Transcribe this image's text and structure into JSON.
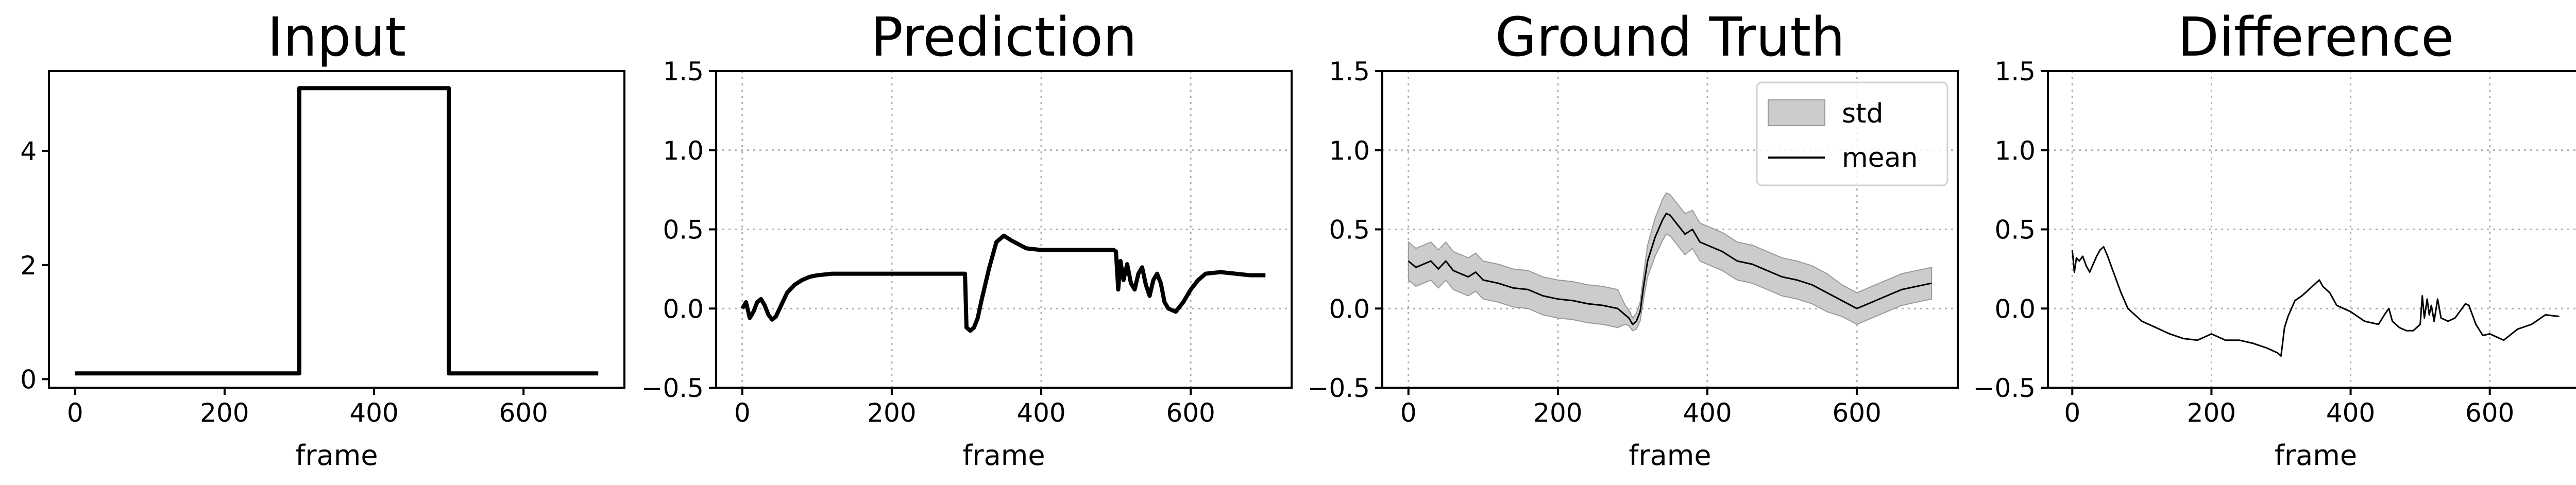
{
  "figure": {
    "colors": {
      "line": "#000000",
      "std_fill": "#cccccc",
      "grid": "#b0b0b0"
    }
  },
  "chart_data": [
    {
      "type": "line",
      "title": "Input",
      "xlabel": "frame",
      "ylabel": "",
      "xlim": [
        -35,
        735
      ],
      "ylim": [
        -0.15,
        5.4
      ],
      "xticks": [
        0,
        200,
        400,
        600
      ],
      "yticks": [
        0,
        2,
        4
      ],
      "grid": false,
      "legend": null,
      "series": [
        {
          "x": [
            0,
            300,
            300,
            500,
            500,
            700
          ],
          "y": [
            0.1,
            0.1,
            5.1,
            5.1,
            0.1,
            0.1
          ]
        }
      ]
    },
    {
      "type": "line",
      "title": "Prediction",
      "xlabel": "frame",
      "ylabel": "",
      "xlim": [
        -35,
        735
      ],
      "ylim": [
        -0.5,
        1.5
      ],
      "xticks": [
        0,
        200,
        400,
        600
      ],
      "yticks": [
        -0.5,
        0.0,
        0.5,
        1.0,
        1.5
      ],
      "grid": true,
      "legend": null,
      "series": [
        {
          "x": [
            0,
            5,
            10,
            15,
            20,
            25,
            30,
            35,
            40,
            45,
            50,
            55,
            60,
            70,
            80,
            90,
            100,
            120,
            150,
            200,
            250,
            298,
            300,
            305,
            310,
            315,
            320,
            330,
            340,
            350,
            360,
            380,
            400,
            450,
            497,
            500,
            503,
            506,
            510,
            515,
            520,
            525,
            530,
            535,
            540,
            545,
            550,
            555,
            560,
            565,
            570,
            580,
            590,
            600,
            610,
            620,
            640,
            660,
            680,
            700
          ],
          "y": [
            0.0,
            0.04,
            -0.06,
            -0.02,
            0.04,
            0.06,
            0.02,
            -0.04,
            -0.07,
            -0.05,
            0.0,
            0.05,
            0.1,
            0.15,
            0.18,
            0.2,
            0.21,
            0.22,
            0.22,
            0.22,
            0.22,
            0.22,
            -0.12,
            -0.14,
            -0.12,
            -0.06,
            0.05,
            0.25,
            0.42,
            0.46,
            0.43,
            0.38,
            0.37,
            0.37,
            0.37,
            0.36,
            0.12,
            0.3,
            0.18,
            0.28,
            0.16,
            0.12,
            0.22,
            0.26,
            0.15,
            0.08,
            0.18,
            0.22,
            0.16,
            0.04,
            0.0,
            -0.02,
            0.04,
            0.12,
            0.18,
            0.22,
            0.23,
            0.22,
            0.21,
            0.21
          ]
        }
      ]
    },
    {
      "type": "line",
      "title": "Ground Truth",
      "xlabel": "frame",
      "ylabel": "",
      "xlim": [
        -35,
        735
      ],
      "ylim": [
        -0.5,
        1.5
      ],
      "xticks": [
        0,
        200,
        400,
        600
      ],
      "yticks": [
        -0.5,
        0.0,
        0.5,
        1.0,
        1.5
      ],
      "grid": true,
      "legend": {
        "position": "top-right",
        "entries": [
          "std",
          "mean"
        ]
      },
      "series": [
        {
          "x": [
            0,
            10,
            20,
            30,
            40,
            50,
            60,
            70,
            80,
            90,
            100,
            120,
            140,
            160,
            180,
            200,
            220,
            240,
            260,
            280,
            290,
            295,
            300,
            305,
            310,
            315,
            320,
            330,
            340,
            345,
            350,
            360,
            370,
            380,
            390,
            400,
            420,
            440,
            460,
            480,
            500,
            520,
            540,
            560,
            580,
            600,
            620,
            640,
            660,
            680,
            700
          ],
          "y": [
            0.3,
            0.26,
            0.28,
            0.3,
            0.25,
            0.3,
            0.24,
            0.22,
            0.2,
            0.23,
            0.18,
            0.16,
            0.13,
            0.12,
            0.08,
            0.06,
            0.05,
            0.03,
            0.02,
            0.0,
            -0.04,
            -0.06,
            -0.1,
            -0.08,
            -0.02,
            0.15,
            0.3,
            0.45,
            0.56,
            0.6,
            0.59,
            0.53,
            0.47,
            0.5,
            0.42,
            0.4,
            0.36,
            0.3,
            0.28,
            0.24,
            0.2,
            0.18,
            0.15,
            0.1,
            0.05,
            0.0,
            0.04,
            0.08,
            0.12,
            0.14,
            0.16
          ]
        }
      ],
      "std": [
        0.12,
        0.12,
        0.12,
        0.12,
        0.12,
        0.12,
        0.12,
        0.12,
        0.12,
        0.12,
        0.12,
        0.12,
        0.12,
        0.12,
        0.12,
        0.12,
        0.12,
        0.12,
        0.12,
        0.12,
        0.06,
        0.05,
        0.04,
        0.05,
        0.06,
        0.08,
        0.1,
        0.12,
        0.13,
        0.13,
        0.13,
        0.13,
        0.13,
        0.12,
        0.12,
        0.12,
        0.12,
        0.12,
        0.12,
        0.12,
        0.12,
        0.12,
        0.12,
        0.12,
        0.1,
        0.1,
        0.1,
        0.1,
        0.1,
        0.1,
        0.1
      ]
    },
    {
      "type": "line",
      "title": "Difference",
      "xlabel": "frame",
      "ylabel": "",
      "xlim": [
        -35,
        735
      ],
      "ylim": [
        -0.5,
        1.5
      ],
      "xticks": [
        0,
        200,
        400,
        600
      ],
      "yticks": [
        -0.5,
        0.0,
        0.5,
        1.0,
        1.5
      ],
      "grid": true,
      "legend": null,
      "series": [
        {
          "x": [
            0,
            3,
            6,
            10,
            15,
            20,
            25,
            30,
            35,
            40,
            45,
            50,
            55,
            60,
            70,
            80,
            90,
            100,
            120,
            140,
            160,
            180,
            200,
            220,
            240,
            260,
            280,
            295,
            300,
            305,
            310,
            320,
            330,
            340,
            350,
            355,
            360,
            370,
            380,
            400,
            420,
            440,
            450,
            455,
            460,
            470,
            480,
            490,
            500,
            503,
            506,
            510,
            513,
            516,
            520,
            525,
            530,
            540,
            550,
            560,
            565,
            570,
            580,
            590,
            600,
            610,
            620,
            640,
            660,
            680,
            700
          ],
          "y": [
            0.37,
            0.23,
            0.32,
            0.3,
            0.33,
            0.27,
            0.23,
            0.28,
            0.33,
            0.37,
            0.39,
            0.34,
            0.28,
            0.22,
            0.1,
            0.0,
            -0.04,
            -0.08,
            -0.12,
            -0.16,
            -0.19,
            -0.2,
            -0.16,
            -0.2,
            -0.2,
            -0.22,
            -0.25,
            -0.28,
            -0.3,
            -0.12,
            -0.05,
            0.05,
            0.08,
            0.12,
            0.16,
            0.18,
            0.14,
            0.1,
            0.02,
            -0.02,
            -0.08,
            -0.1,
            -0.03,
            0.0,
            -0.08,
            -0.12,
            -0.14,
            -0.14,
            -0.1,
            0.08,
            -0.06,
            0.06,
            -0.04,
            0.02,
            -0.08,
            0.06,
            -0.06,
            -0.08,
            -0.06,
            0.0,
            0.03,
            0.02,
            -0.1,
            -0.17,
            -0.16,
            -0.18,
            -0.2,
            -0.13,
            -0.1,
            -0.04,
            -0.05
          ]
        }
      ]
    }
  ]
}
